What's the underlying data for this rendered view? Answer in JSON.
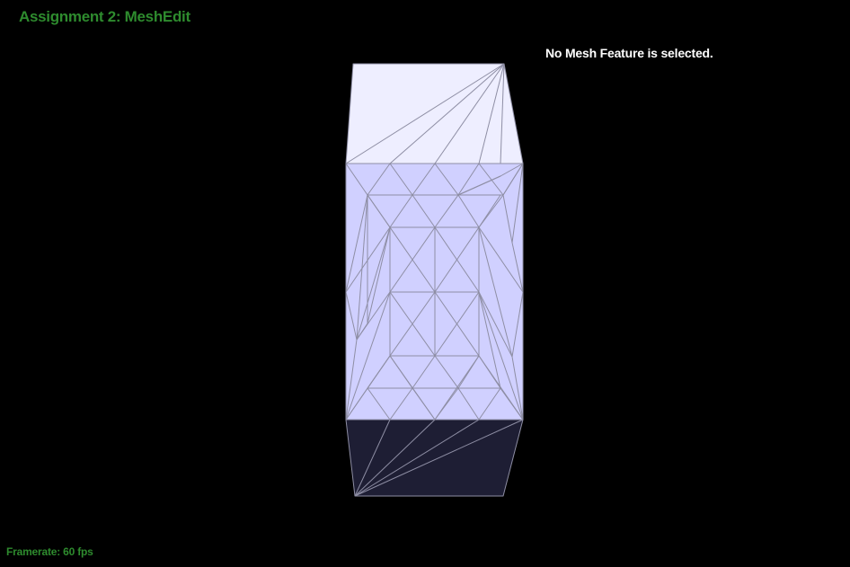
{
  "app": {
    "title": "Assignment 2: MeshEdit",
    "selection_status": "No Mesh Feature is selected.",
    "framerate_label": "Framerate: 60 fps"
  },
  "colors": {
    "background": "#000000",
    "title_text": "#2e8b2e",
    "status_text": "#ffffff",
    "top_face": "#eeeeff",
    "front_face": "#d0d0ff",
    "bottom_face": "#1e1e34",
    "mesh_edges": "#8e8ea4"
  }
}
